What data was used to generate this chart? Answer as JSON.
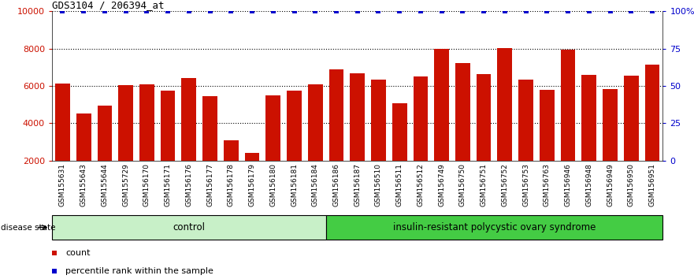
{
  "title": "GDS3104 / 206394_at",
  "samples": [
    "GSM155631",
    "GSM155643",
    "GSM155644",
    "GSM155729",
    "GSM156170",
    "GSM156171",
    "GSM156176",
    "GSM156177",
    "GSM156178",
    "GSM156179",
    "GSM156180",
    "GSM156181",
    "GSM156184",
    "GSM156186",
    "GSM156187",
    "GSM156510",
    "GSM156511",
    "GSM156512",
    "GSM156749",
    "GSM156750",
    "GSM156751",
    "GSM156752",
    "GSM156753",
    "GSM156763",
    "GSM156946",
    "GSM156948",
    "GSM156949",
    "GSM156950",
    "GSM156951"
  ],
  "counts": [
    6100,
    4500,
    4950,
    6020,
    6060,
    5750,
    6400,
    5450,
    3080,
    2420,
    5500,
    5750,
    6080,
    6880,
    6680,
    6320,
    5080,
    6520,
    8000,
    7200,
    6620,
    8030,
    6320,
    5800,
    7940,
    6580,
    5810,
    6560,
    7120
  ],
  "n_control": 13,
  "bar_color": "#CC1100",
  "percentile_color": "#0000CC",
  "control_fill": "#c8f0c8",
  "disease_fill": "#44CC44",
  "ylim_left": [
    2000,
    10000
  ],
  "ylim_right": [
    0,
    100
  ],
  "yticks_left": [
    2000,
    4000,
    6000,
    8000,
    10000
  ],
  "yticks_right": [
    0,
    25,
    50,
    75,
    100
  ],
  "ytick_right_labels": [
    "0",
    "25",
    "50",
    "75",
    "100%"
  ],
  "grid_ticks": [
    4000,
    6000,
    8000,
    10000
  ],
  "control_label": "control",
  "disease_label": "insulin-resistant polycystic ovary syndrome",
  "disease_state_label": "disease state",
  "legend_count": "count",
  "legend_percentile": "percentile rank within the sample",
  "background_color": "#ffffff",
  "xticklabel_bg": "#c8c8c8"
}
